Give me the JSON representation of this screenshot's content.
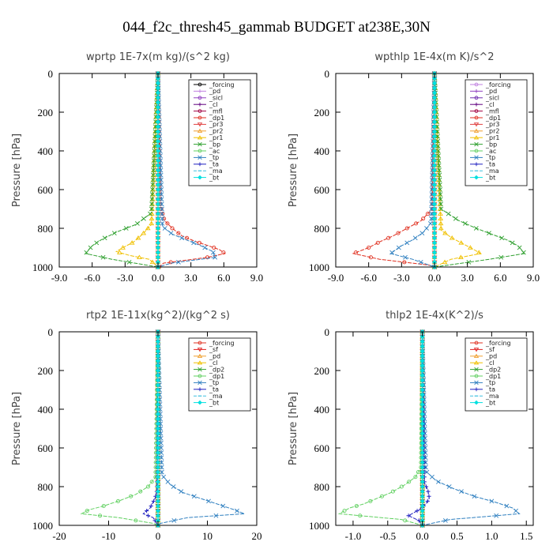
{
  "title": "044_f2c_thresh45_gammab  BUDGET at238E,30N",
  "chart_data": [
    {
      "type": "line",
      "title": "wprtp  1E-7x(m kg)/(s^2 kg)",
      "ylabel": "Pressure [hPa]",
      "xlim": [
        -9,
        9
      ],
      "ylim": [
        1000,
        0
      ],
      "xticks": [
        "-9.0",
        "-6.0",
        "-3.0",
        "0.0",
        "3.0",
        "6.0",
        "9.0"
      ],
      "yticks": [
        "0",
        "200",
        "400",
        "600",
        "800",
        "1000"
      ],
      "grid": false,
      "legend_position": "top-right",
      "series": [
        {
          "name": "_forcing",
          "color": "#000000",
          "marker": "o",
          "x": [
            0,
            0
          ],
          "y": [
            0,
            1000
          ]
        },
        {
          "name": "_pd",
          "color": "#c080e0",
          "marker": "+",
          "x": [
            0,
            0
          ],
          "y": [
            0,
            1000
          ]
        },
        {
          "name": "_sicl",
          "color": "#9040c0",
          "marker": "o",
          "x": [
            0,
            0
          ],
          "y": [
            0,
            1000
          ]
        },
        {
          "name": "_cl",
          "color": "#600080",
          "marker": "+",
          "x": [
            0,
            0
          ],
          "y": [
            0,
            1000
          ]
        },
        {
          "name": "_mfl",
          "color": "#a00040",
          "marker": "o",
          "x": [
            0,
            0
          ],
          "y": [
            0,
            1000
          ]
        },
        {
          "name": "_dp1",
          "color": "#e03020",
          "marker": "o",
          "x": [
            0,
            0.2,
            0.6,
            1.3,
            2.2,
            3.5,
            4.6,
            5.6,
            6.1,
            4.5,
            0.5,
            0.1
          ],
          "y": [
            0,
            680,
            760,
            800,
            840,
            870,
            890,
            910,
            930,
            950,
            980,
            1000
          ]
        },
        {
          "name": "_pr3",
          "color": "#e04040",
          "marker": "v",
          "x": [
            0,
            0
          ],
          "y": [
            0,
            1000
          ]
        },
        {
          "name": "_pr2",
          "color": "#f0a030",
          "marker": "^",
          "x": [
            0,
            0
          ],
          "y": [
            0,
            1000
          ]
        },
        {
          "name": "_pr1",
          "color": "#f0c000",
          "marker": "^",
          "x": [
            0,
            -0.6,
            -1.4,
            -2.2,
            -3.2,
            -3.8,
            -2.6,
            -0.8,
            0
          ],
          "y": [
            0,
            780,
            830,
            870,
            900,
            920,
            940,
            960,
            1000
          ]
        },
        {
          "name": "_bp",
          "color": "#30a030",
          "marker": "x",
          "x": [
            0,
            -0.6,
            -2.0,
            -3.8,
            -5.2,
            -6.0,
            -6.6,
            -4.2,
            0
          ],
          "y": [
            0,
            720,
            780,
            820,
            860,
            890,
            930,
            960,
            1000
          ]
        },
        {
          "name": "_ac",
          "color": "#60d060",
          "marker": "o",
          "x": [
            0,
            0
          ],
          "y": [
            0,
            1000
          ]
        },
        {
          "name": "_tp",
          "color": "#3080c0",
          "marker": "x",
          "x": [
            0,
            0.4,
            1.3,
            2.6,
            3.9,
            5.0,
            5.2,
            1.2,
            0
          ],
          "y": [
            0,
            790,
            830,
            860,
            890,
            920,
            950,
            980,
            1000
          ]
        },
        {
          "name": "_ta",
          "color": "#2020c0",
          "marker": "+",
          "x": [
            0,
            0
          ],
          "y": [
            0,
            1000
          ]
        },
        {
          "name": "_ma",
          "color": "#40c0e0",
          "marker": "-",
          "x": [
            0,
            0
          ],
          "y": [
            0,
            1000
          ]
        },
        {
          "name": "_bt",
          "color": "#00e0e0",
          "marker": "d",
          "x": [
            0,
            0
          ],
          "y": [
            0,
            1000
          ]
        }
      ]
    },
    {
      "type": "line",
      "title": "wpthlp  1E-4x(m K)/s^2",
      "ylabel": "Pressure [hPa]",
      "xlim": [
        -9,
        9
      ],
      "ylim": [
        1000,
        0
      ],
      "xticks": [
        "-9.0",
        "-6.0",
        "-3.0",
        "0.0",
        "3.0",
        "6.0",
        "9.0"
      ],
      "yticks": [
        "0",
        "200",
        "400",
        "600",
        "800",
        "1000"
      ],
      "grid": false,
      "legend_position": "top-right",
      "series": [
        {
          "name": "_forcing",
          "color": "#c080e0",
          "marker": "o",
          "x": [
            0,
            0
          ],
          "y": [
            0,
            1000
          ]
        },
        {
          "name": "_pd",
          "color": "#9040c0",
          "marker": "+",
          "x": [
            0,
            0
          ],
          "y": [
            0,
            1000
          ]
        },
        {
          "name": "_sicl",
          "color": "#7030b0",
          "marker": "o",
          "x": [
            0,
            0
          ],
          "y": [
            0,
            1000
          ]
        },
        {
          "name": "_cl",
          "color": "#600080",
          "marker": "+",
          "x": [
            0,
            0
          ],
          "y": [
            0,
            1000
          ]
        },
        {
          "name": "_mfl",
          "color": "#a00040",
          "marker": "o",
          "x": [
            0,
            0
          ],
          "y": [
            0,
            1000
          ]
        },
        {
          "name": "_dp1",
          "color": "#e03020",
          "marker": "o",
          "x": [
            0,
            -0.2,
            -1.2,
            -2.5,
            -3.8,
            -5.0,
            -6.0,
            -7.4,
            -5.0,
            -0.5,
            0
          ],
          "y": [
            0,
            700,
            760,
            800,
            840,
            870,
            900,
            930,
            960,
            990,
            1000
          ]
        },
        {
          "name": "_pr3",
          "color": "#e04040",
          "marker": "v",
          "x": [
            0,
            0
          ],
          "y": [
            0,
            1000
          ]
        },
        {
          "name": "_pr2",
          "color": "#f0a030",
          "marker": "^",
          "x": [
            0,
            0
          ],
          "y": [
            0,
            1000
          ]
        },
        {
          "name": "_pr1",
          "color": "#f0c000",
          "marker": "^",
          "x": [
            0,
            0.6,
            1.6,
            2.6,
            3.6,
            4.2,
            1.5,
            0
          ],
          "y": [
            0,
            810,
            850,
            880,
            910,
            930,
            960,
            1000
          ]
        },
        {
          "name": "_bp",
          "color": "#30a030",
          "marker": "x",
          "x": [
            0,
            0.6,
            2.2,
            3.8,
            5.2,
            6.6,
            7.6,
            8.2,
            5.0,
            0
          ],
          "y": [
            0,
            700,
            760,
            800,
            830,
            860,
            890,
            930,
            960,
            1000
          ]
        },
        {
          "name": "_ac",
          "color": "#60d060",
          "marker": "o",
          "x": [
            0,
            0
          ],
          "y": [
            0,
            1000
          ]
        },
        {
          "name": "_tp",
          "color": "#3080c0",
          "marker": "x",
          "x": [
            0,
            -0.3,
            -1.0,
            -2.0,
            -3.0,
            -4.0,
            -2.0,
            0
          ],
          "y": [
            0,
            770,
            820,
            860,
            890,
            930,
            960,
            1000
          ]
        },
        {
          "name": "_ta",
          "color": "#2020c0",
          "marker": "+",
          "x": [
            0,
            0
          ],
          "y": [
            0,
            1000
          ]
        },
        {
          "name": "_ma",
          "color": "#40c0e0",
          "marker": "-",
          "x": [
            0,
            0
          ],
          "y": [
            0,
            1000
          ]
        },
        {
          "name": "_bt",
          "color": "#00e0e0",
          "marker": "d",
          "x": [
            0,
            0
          ],
          "y": [
            0,
            1000
          ]
        }
      ]
    },
    {
      "type": "line",
      "title": "rtp2  1E-11x(kg^2)/(kg^2 s)",
      "ylabel": "Pressure [hPa]",
      "xlim": [
        -20,
        20
      ],
      "ylim": [
        1000,
        0
      ],
      "xticks": [
        "-20",
        "-10",
        "0",
        "10",
        "20"
      ],
      "yticks": [
        "0",
        "200",
        "400",
        "600",
        "800",
        "1000"
      ],
      "grid": false,
      "legend_position": "top-right",
      "series": [
        {
          "name": "_forcing",
          "color": "#e03020",
          "marker": "o",
          "x": [
            0,
            0
          ],
          "y": [
            0,
            1000
          ]
        },
        {
          "name": "_sf",
          "color": "#e02020",
          "marker": "v",
          "x": [
            0,
            0
          ],
          "y": [
            0,
            1000
          ]
        },
        {
          "name": "_pd",
          "color": "#f0a030",
          "marker": "^",
          "x": [
            0,
            0
          ],
          "y": [
            0,
            1000
          ]
        },
        {
          "name": "_cl",
          "color": "#f0c000",
          "marker": "^",
          "x": [
            0,
            0
          ],
          "y": [
            0,
            1000
          ]
        },
        {
          "name": "_dp2",
          "color": "#30a030",
          "marker": "x",
          "x": [
            0,
            0
          ],
          "y": [
            0,
            1000
          ]
        },
        {
          "name": "_dp1",
          "color": "#60d060",
          "marker": "o",
          "x": [
            0,
            -0.5,
            -2.0,
            -4.5,
            -7.5,
            -11.0,
            -14.0,
            -15.5,
            -8.0,
            -1.0,
            0
          ],
          "y": [
            0,
            750,
            800,
            840,
            870,
            900,
            920,
            940,
            960,
            990,
            1000
          ]
        },
        {
          "name": "_tp",
          "color": "#3080c0",
          "marker": "x",
          "x": [
            0,
            0.8,
            2.5,
            5.0,
            8.5,
            12.0,
            15.5,
            17.5,
            6.0,
            0.5,
            0
          ],
          "y": [
            0,
            740,
            790,
            830,
            860,
            890,
            920,
            940,
            960,
            990,
            1000
          ]
        },
        {
          "name": "_ta",
          "color": "#2020c0",
          "marker": "+",
          "x": [
            0,
            -0.2,
            -0.6,
            -1.2,
            -1.6,
            -3.0,
            -1.0,
            0
          ],
          "y": [
            0,
            820,
            860,
            890,
            910,
            940,
            960,
            1000
          ]
        },
        {
          "name": "_ma",
          "color": "#40c0e0",
          "marker": "-",
          "x": [
            0,
            0
          ],
          "y": [
            0,
            1000
          ]
        },
        {
          "name": "_bt",
          "color": "#00e0e0",
          "marker": "d",
          "x": [
            0,
            0
          ],
          "y": [
            0,
            1000
          ]
        }
      ]
    },
    {
      "type": "line",
      "title": "thlp2  1E-4x(K^2)/s",
      "ylabel": "Pressure [hPa]",
      "xlim": [
        -1.25,
        1.6
      ],
      "ylim": [
        1000,
        0
      ],
      "xticks": [
        "-1.0",
        "-0.5",
        "0.0",
        "0.5",
        "1.0",
        "1.5"
      ],
      "xtick_values": [
        -1.0,
        -0.5,
        0.0,
        0.5,
        1.0,
        1.5
      ],
      "yticks": [
        "0",
        "200",
        "400",
        "600",
        "800",
        "1000"
      ],
      "grid": false,
      "legend_position": "top-right",
      "series": [
        {
          "name": "_forcing",
          "color": "#e03020",
          "marker": "o",
          "x": [
            0,
            0
          ],
          "y": [
            0,
            1000
          ]
        },
        {
          "name": "_sf",
          "color": "#e02020",
          "marker": "v",
          "x": [
            0,
            0
          ],
          "y": [
            0,
            1000
          ]
        },
        {
          "name": "_pd",
          "color": "#f0a030",
          "marker": "^",
          "x": [
            0,
            0
          ],
          "y": [
            0,
            1000
          ]
        },
        {
          "name": "_cl",
          "color": "#f0c000",
          "marker": "^",
          "x": [
            0,
            0
          ],
          "y": [
            0,
            1000
          ]
        },
        {
          "name": "_dp2",
          "color": "#30a030",
          "marker": "x",
          "x": [
            0,
            0
          ],
          "y": [
            0,
            1000
          ]
        },
        {
          "name": "_dp1",
          "color": "#60d060",
          "marker": "o",
          "x": [
            0,
            -0.02,
            -0.1,
            -0.25,
            -0.45,
            -0.65,
            -0.85,
            -1.05,
            -1.2,
            -0.3,
            0
          ],
          "y": [
            0,
            700,
            750,
            790,
            830,
            860,
            890,
            910,
            940,
            970,
            1000
          ]
        },
        {
          "name": "_tp",
          "color": "#3080c0",
          "marker": "x",
          "x": [
            0,
            0.05,
            0.2,
            0.45,
            0.75,
            1.05,
            1.3,
            1.4,
            0.4,
            0
          ],
          "y": [
            0,
            720,
            770,
            810,
            850,
            880,
            910,
            940,
            970,
            1000
          ]
        },
        {
          "name": "_ta",
          "color": "#2020c0",
          "marker": "+",
          "x": [
            0,
            0.03,
            0.08,
            0.1,
            0.05,
            -0.05,
            -0.2,
            -0.05,
            0
          ],
          "y": [
            0,
            780,
            820,
            860,
            890,
            920,
            950,
            975,
            1000
          ]
        },
        {
          "name": "_ma",
          "color": "#40c0e0",
          "marker": "-",
          "x": [
            0,
            0
          ],
          "y": [
            0,
            1000
          ]
        },
        {
          "name": "_bt",
          "color": "#00e0e0",
          "marker": "d",
          "x": [
            0,
            0
          ],
          "y": [
            0,
            1000
          ]
        }
      ]
    }
  ]
}
